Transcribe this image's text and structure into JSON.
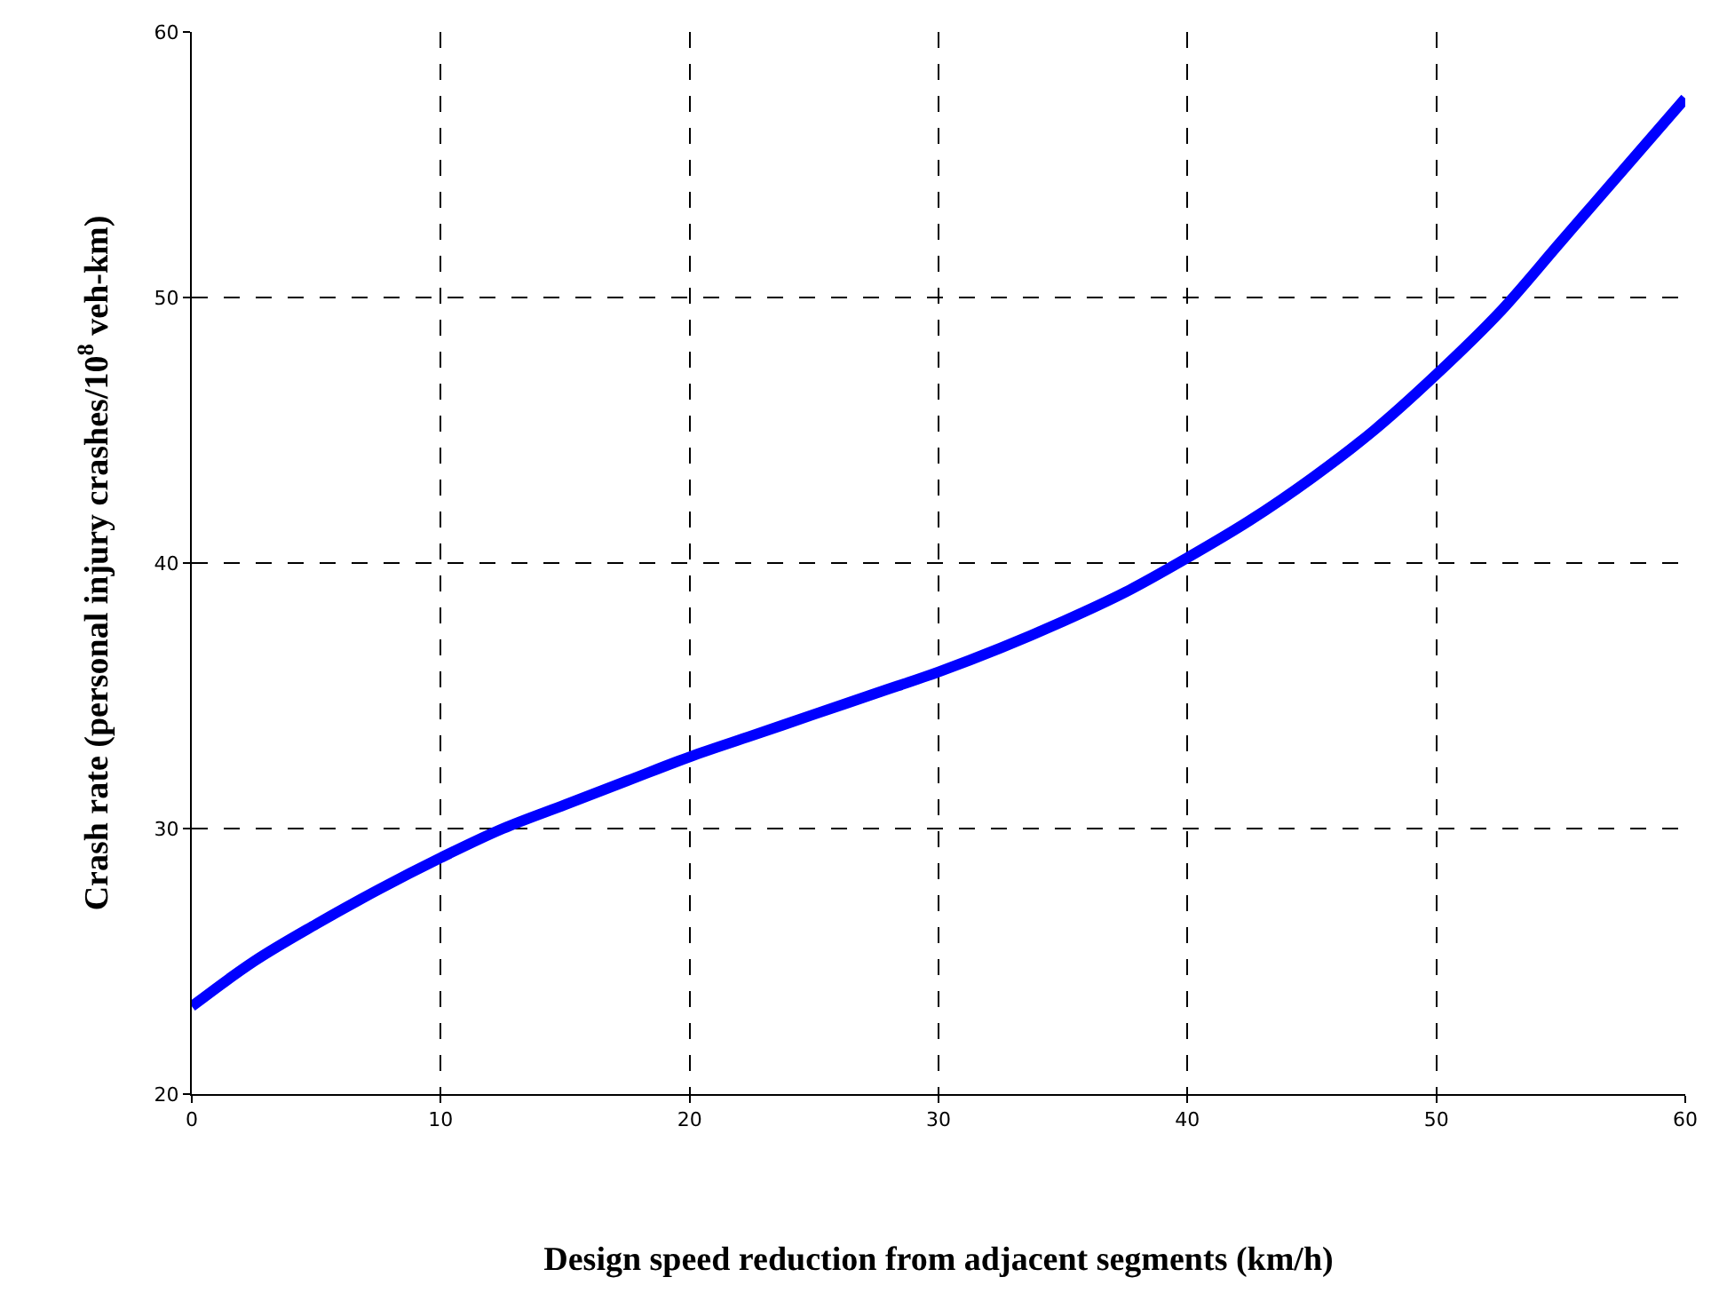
{
  "chart_data": {
    "type": "line",
    "xlabel": "Design speed reduction from adjacent segments (km/h)",
    "ylabel": "Crash rate (personal injury crashes/10$^{8}$ veh-km)",
    "x": [
      0,
      2.5,
      5,
      7.5,
      10,
      12.5,
      15,
      17.5,
      20,
      22.5,
      25,
      27.5,
      30,
      32.5,
      35,
      37.5,
      40,
      42.5,
      45,
      47.5,
      50,
      52.5,
      55,
      57.5,
      60
    ],
    "series": [
      {
        "color": "#0000ff",
        "values": [
          23.3,
          25.0,
          26.4,
          27.7,
          28.9,
          30.0,
          30.9,
          31.8,
          32.7,
          33.5,
          34.3,
          35.1,
          35.9,
          36.8,
          37.8,
          38.9,
          40.2,
          41.6,
          43.2,
          45.0,
          47.1,
          49.4,
          52.1,
          54.8,
          57.5
        ]
      }
    ],
    "xlim": [
      0,
      60
    ],
    "xticks": [
      0,
      10,
      20,
      30,
      40,
      50,
      60
    ],
    "ylim": [
      20,
      60
    ],
    "yticks": [
      20,
      30,
      40,
      50,
      60
    ],
    "grid": true,
    "line_style": "solid",
    "marker": "none"
  }
}
